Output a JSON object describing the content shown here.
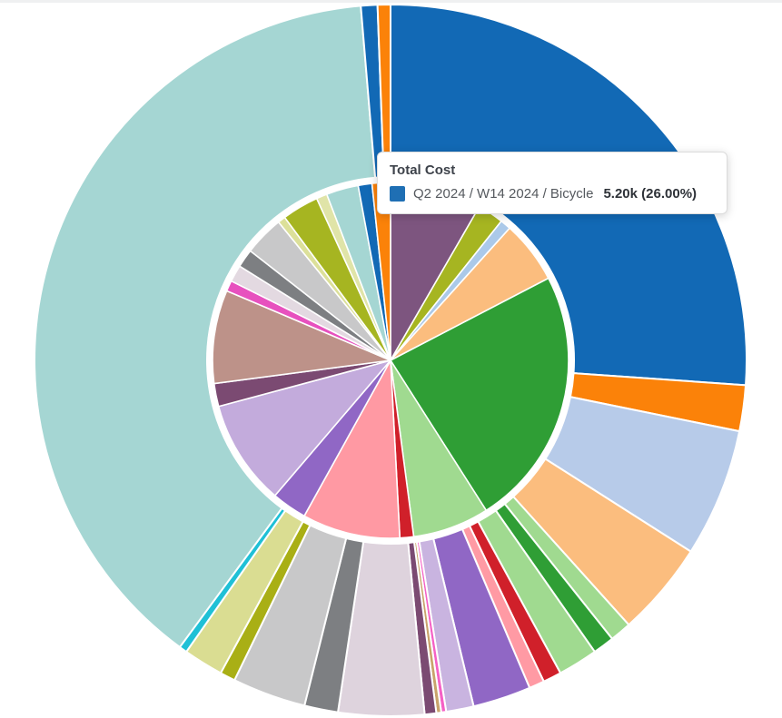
{
  "page": {
    "background_color": "#ffffff",
    "top_strip_color": "#eff0f1"
  },
  "tooltip": {
    "title": "Total Cost",
    "series_label": "Q2 2024 / W14 2024 / Bicycle",
    "value_text": "5.20k (26.00%)",
    "swatch_color": "#1f6fb4"
  },
  "chart_data": {
    "type": "pie",
    "subtype": "sunburst-two-ring",
    "title": "Total Cost",
    "legend": "none",
    "hovered_segment": {
      "ring": "outer",
      "label": "Q2 2024 / W14 2024 / Bicycle",
      "value": "5.20k",
      "percent": "26.00%",
      "color": "#1269b5"
    },
    "rings": [
      {
        "name": "inner",
        "segments": [
          {
            "name": "plum",
            "color": "#7d557f",
            "deg": 30.0,
            "pct": 8.3
          },
          {
            "name": "olive",
            "color": "#a6b521",
            "deg": 8.5,
            "pct": 2.4
          },
          {
            "name": "light-blue",
            "color": "#abc9e9",
            "deg": 3.5,
            "pct": 1.0
          },
          {
            "name": "peach",
            "color": "#fbbd7e",
            "deg": 20.5,
            "pct": 5.7
          },
          {
            "name": "green",
            "color": "#2f9e35",
            "deg": 85.0,
            "pct": 23.6
          },
          {
            "name": "light-green",
            "color": "#a0da90",
            "deg": 25.0,
            "pct": 6.9
          },
          {
            "name": "red",
            "color": "#d0202a",
            "deg": 4.5,
            "pct": 1.3
          },
          {
            "name": "salmon",
            "color": "#ff99a3",
            "deg": 32.0,
            "pct": 8.9
          },
          {
            "name": "purple",
            "color": "#9067c5",
            "deg": 11.5,
            "pct": 3.2
          },
          {
            "name": "lavender",
            "color": "#c3abdc",
            "deg": 34.5,
            "pct": 9.6
          },
          {
            "name": "dark-plum",
            "color": "#7b4a72",
            "deg": 7.5,
            "pct": 2.1
          },
          {
            "name": "rosy-brown",
            "color": "#bd9289",
            "deg": 30.5,
            "pct": 8.5
          },
          {
            "name": "magenta",
            "color": "#e751be",
            "deg": 3.5,
            "pct": 1.0
          },
          {
            "name": "thistle",
            "color": "#e3d9e1",
            "deg": 5.5,
            "pct": 1.5
          },
          {
            "name": "dark-gray",
            "color": "#7d7f82",
            "deg": 6.0,
            "pct": 1.7
          },
          {
            "name": "light-gray",
            "color": "#c8c8c9",
            "deg": 13.0,
            "pct": 3.6
          },
          {
            "name": "pale-khaki",
            "color": "#dce09a",
            "deg": 2.5,
            "pct": 0.7
          },
          {
            "name": "olive-2",
            "color": "#a6b521",
            "deg": 12.0,
            "pct": 3.3
          },
          {
            "name": "pale-yellow",
            "color": "#e0e4a8",
            "deg": 3.5,
            "pct": 1.0
          },
          {
            "name": "teal",
            "color": "#a5d6d3",
            "deg": 10.5,
            "pct": 2.9
          },
          {
            "name": "blue",
            "color": "#1269b5",
            "deg": 4.5,
            "pct": 1.3
          },
          {
            "name": "orange",
            "color": "#fb8209",
            "deg": 6.0,
            "pct": 1.7
          }
        ]
      },
      {
        "name": "outer",
        "segments": [
          {
            "name": "blue-bicycle",
            "color": "#1269b5",
            "deg": 94.0,
            "pct": 26.0
          },
          {
            "name": "orange",
            "color": "#fb8209",
            "deg": 7.5,
            "pct": 2.1
          },
          {
            "name": "periwinkle",
            "color": "#b7cbe9",
            "deg": 21.0,
            "pct": 5.8
          },
          {
            "name": "peach",
            "color": "#fbbd7e",
            "deg": 15.5,
            "pct": 4.3
          },
          {
            "name": "light-green-a",
            "color": "#a0da90",
            "deg": 3.5,
            "pct": 1.0
          },
          {
            "name": "dark-green",
            "color": "#2f9e35",
            "deg": 3.5,
            "pct": 1.0
          },
          {
            "name": "light-green-b",
            "color": "#a0da90",
            "deg": 6.5,
            "pct": 1.8
          },
          {
            "name": "red",
            "color": "#d0202a",
            "deg": 3.0,
            "pct": 0.8
          },
          {
            "name": "pink",
            "color": "#ff9aa4",
            "deg": 2.5,
            "pct": 0.7
          },
          {
            "name": "purple",
            "color": "#9067c5",
            "deg": 9.5,
            "pct": 2.6
          },
          {
            "name": "pale-lavender",
            "color": "#c9b4e0",
            "deg": 4.5,
            "pct": 1.3
          },
          {
            "name": "magenta-hairline",
            "color": "#f561c5",
            "deg": 0.8,
            "pct": 0.2
          },
          {
            "name": "tan-hairline",
            "color": "#c9a36b",
            "deg": 0.8,
            "pct": 0.2
          },
          {
            "name": "dark-plum-thin",
            "color": "#7b4a72",
            "deg": 1.9,
            "pct": 0.5
          },
          {
            "name": "thistle",
            "color": "#ded3dd",
            "deg": 14.0,
            "pct": 3.9
          },
          {
            "name": "dark-gray",
            "color": "#7d7f82",
            "deg": 5.5,
            "pct": 1.5
          },
          {
            "name": "light-gray",
            "color": "#c8c8c9",
            "deg": 12.0,
            "pct": 3.3
          },
          {
            "name": "olive",
            "color": "#a9af15",
            "deg": 2.5,
            "pct": 0.7
          },
          {
            "name": "khaki",
            "color": "#dadd92",
            "deg": 6.5,
            "pct": 1.8
          },
          {
            "name": "cyan",
            "color": "#1fc0d6",
            "deg": 1.3,
            "pct": 0.4
          },
          {
            "name": "teal",
            "color": "#a5d6d3",
            "deg": 138.9,
            "pct": 38.6
          },
          {
            "name": "blue-sliver",
            "color": "#1269b5",
            "deg": 2.7,
            "pct": 0.8
          },
          {
            "name": "orange-sliver",
            "color": "#fb8209",
            "deg": 2.1,
            "pct": 0.6
          }
        ]
      }
    ]
  }
}
